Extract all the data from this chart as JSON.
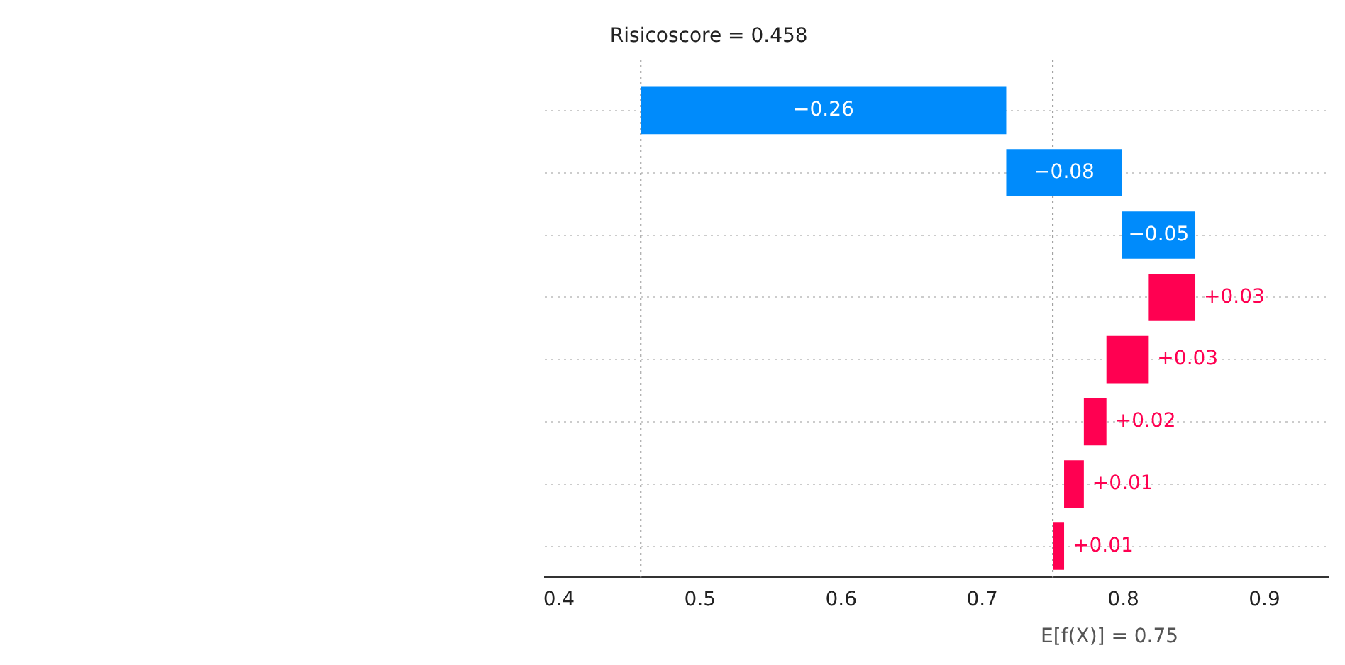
{
  "chart_data": {
    "type": "bar",
    "orientation": "horizontal",
    "categories": [
      null,
      null,
      null,
      null,
      null,
      null,
      null,
      null
    ],
    "values": [
      -0.259,
      -0.082,
      -0.052,
      0.033,
      0.03,
      0.016,
      0.014,
      0.008
    ],
    "base": [
      0.717,
      0.799,
      0.851,
      0.818,
      0.788,
      0.772,
      0.758,
      0.75
    ],
    "colors": [
      "#008bfb",
      "#008bfb",
      "#008bfb",
      "#ff0051",
      "#ff0051",
      "#ff0051",
      "#ff0051",
      "#ff0051"
    ],
    "value_labels": [
      "−0.26",
      "−0.08",
      "−0.05",
      "+0.03",
      "+0.03",
      "+0.02",
      "+0.01",
      "+0.01"
    ],
    "xlim": [
      0.39,
      0.945
    ],
    "xticks": [
      0.4,
      0.5,
      0.6,
      0.7,
      0.8,
      0.9
    ],
    "grid": "y",
    "legend": false,
    "ref_lines": [
      {
        "axis": "x",
        "value": 0.458,
        "label": "Risicoscore = 0.458",
        "color": "#999999",
        "line_style": "dotted"
      },
      {
        "axis": "x",
        "value": 0.75,
        "label": "E[f(X)] = 0.75",
        "color": "#999999",
        "line_style": "dotted"
      }
    ]
  }
}
